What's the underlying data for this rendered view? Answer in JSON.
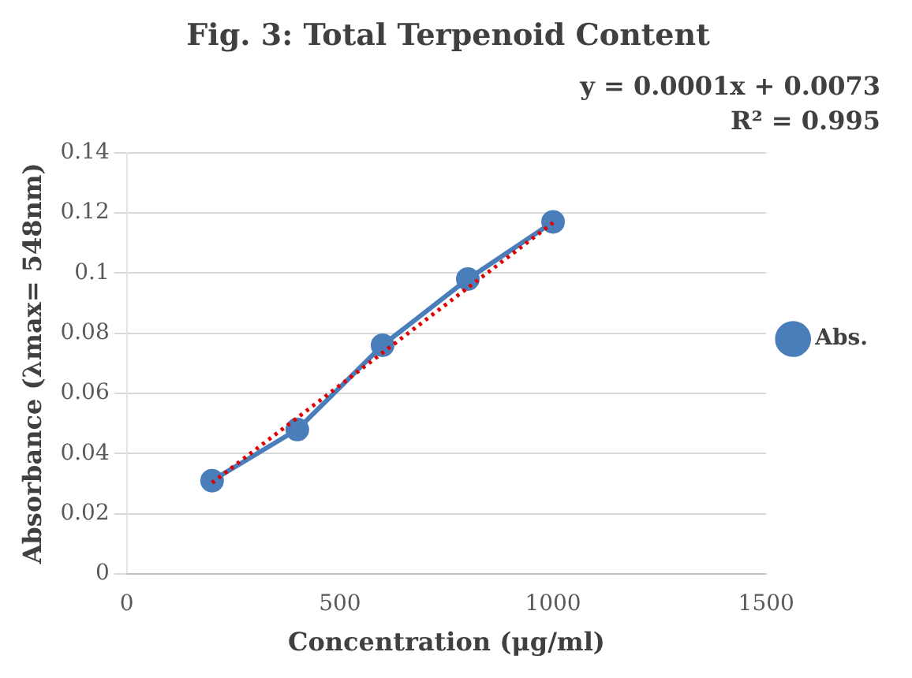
{
  "chart_data": {
    "type": "line",
    "title": "Fig. 3: Total Terpenoid Content",
    "xlabel": "Concentration (μg/ml)",
    "ylabel": "Absorbance (λmax= 548nm)",
    "x": [
      200,
      400,
      600,
      800,
      1000
    ],
    "series": [
      {
        "name": "Abs.",
        "color": "#4a7ebb",
        "values": [
          0.031,
          0.048,
          0.076,
          0.098,
          0.117
        ],
        "marker": "circle"
      },
      {
        "type": "line",
        "color": "#e00000",
        "x": [
          200,
          1000
        ],
        "values": [
          0.0303,
          0.1167
        ],
        "line_style": "dotted",
        "marker": "none"
      }
    ],
    "xlim": [
      0,
      1500
    ],
    "xticks": [
      0,
      500,
      1000,
      1500
    ],
    "ylim": [
      0,
      0.14
    ],
    "yticks": [
      0,
      0.02,
      0.04,
      0.06,
      0.08,
      0.1,
      0.12,
      0.14
    ],
    "grid": "y",
    "legend": "right",
    "annotations": [
      "y = 0.0001x + 0.0073",
      "R² = 0.995"
    ]
  }
}
